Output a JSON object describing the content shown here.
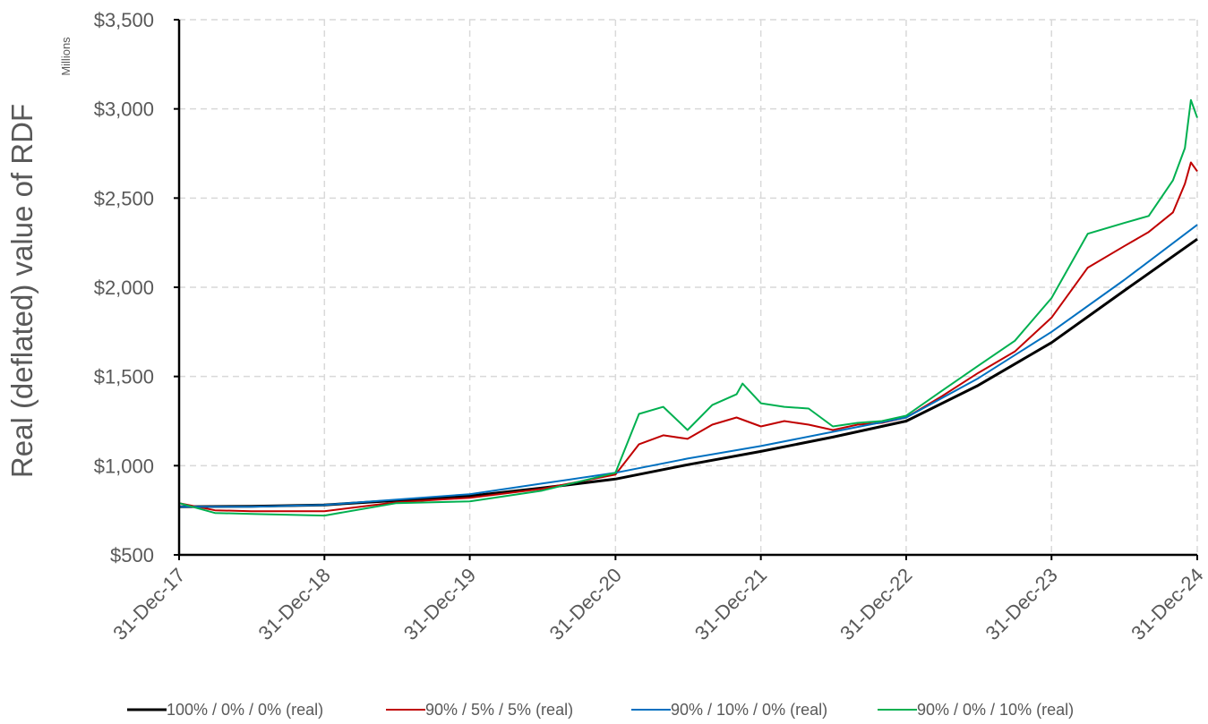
{
  "chart_data": {
    "type": "line",
    "title": "",
    "ylabel": "Real (deflated) value of RDF",
    "y_unit_label": "Millions",
    "ylim": [
      500,
      3500
    ],
    "y_ticks": [
      500,
      1000,
      1500,
      2000,
      2500,
      3000,
      3500
    ],
    "y_tick_labels": [
      "$500",
      "$1,000",
      "$1,500",
      "$2,000",
      "$2,500",
      "$3,000",
      "$3,500"
    ],
    "x_ticks": [
      0,
      1,
      2,
      3,
      4,
      5,
      6,
      7
    ],
    "x_tick_labels": [
      "31-Dec-17",
      "31-Dec-18",
      "31-Dec-19",
      "31-Dec-20",
      "31-Dec-21",
      "31-Dec-22",
      "31-Dec-23",
      "31-Dec-24"
    ],
    "x_range": [
      "31-Dec-17",
      "31-Dec-24"
    ],
    "grid": true,
    "legend_position": "bottom",
    "series": [
      {
        "name": "100% / 0% / 0% (real)",
        "color": "#000000",
        "x": [
          "31-Dec-17",
          "30-Jun-18",
          "31-Dec-18",
          "30-Jun-19",
          "31-Dec-19",
          "30-Jun-20",
          "31-Dec-20",
          "30-Jun-21",
          "31-Dec-21",
          "30-Jun-22",
          "31-Dec-22",
          "30-Jun-23",
          "31-Dec-23",
          "30-Jun-24",
          "31-Dec-24"
        ],
        "values": [
          770,
          772,
          780,
          805,
          830,
          875,
          925,
          1005,
          1080,
          1160,
          1250,
          1450,
          1690,
          1980,
          2270
        ]
      },
      {
        "name": "90% / 5% / 5% (real)",
        "color": "#C00000",
        "x": [
          "31-Dec-17",
          "31-Mar-18",
          "30-Jun-18",
          "31-Dec-18",
          "30-Jun-19",
          "31-Dec-19",
          "30-Jun-20",
          "31-Dec-20",
          "28-Feb-21",
          "30-Apr-21",
          "30-Jun-21",
          "31-Aug-21",
          "31-Oct-21",
          "31-Dec-21",
          "28-Feb-22",
          "30-Apr-22",
          "30-Jun-22",
          "31-Aug-22",
          "31-Oct-22",
          "31-Dec-22",
          "31-Mar-23",
          "30-Jun-23",
          "30-Sep-23",
          "31-Dec-23",
          "31-Mar-24",
          "30-Jun-24",
          "31-Aug-24",
          "31-Oct-24",
          "30-Nov-24",
          "15-Dec-24",
          "31-Dec-24"
        ],
        "values": [
          790,
          750,
          745,
          745,
          795,
          820,
          870,
          950,
          1120,
          1170,
          1150,
          1230,
          1270,
          1220,
          1250,
          1230,
          1200,
          1230,
          1240,
          1270,
          1390,
          1520,
          1640,
          1830,
          2110,
          2230,
          2310,
          2420,
          2580,
          2700,
          2650
        ]
      },
      {
        "name": "90% / 10% / 0% (real)",
        "color": "#0070C0",
        "x": [
          "31-Dec-17",
          "30-Jun-18",
          "31-Dec-18",
          "30-Jun-19",
          "31-Dec-19",
          "30-Jun-20",
          "31-Dec-20",
          "30-Jun-21",
          "31-Dec-21",
          "30-Jun-22",
          "31-Dec-22",
          "30-Jun-23",
          "31-Dec-23",
          "30-Jun-24",
          "31-Dec-24"
        ],
        "values": [
          770,
          770,
          780,
          810,
          840,
          900,
          960,
          1040,
          1110,
          1190,
          1270,
          1490,
          1750,
          2040,
          2350
        ]
      },
      {
        "name": "90% / 0% / 10% (real)",
        "color": "#00B050",
        "x": [
          "31-Dec-17",
          "31-Mar-18",
          "30-Jun-18",
          "31-Dec-18",
          "30-Jun-19",
          "31-Dec-19",
          "30-Jun-20",
          "31-Dec-20",
          "28-Feb-21",
          "30-Apr-21",
          "30-Jun-21",
          "31-Aug-21",
          "31-Oct-21",
          "15-Nov-21",
          "31-Dec-21",
          "28-Feb-22",
          "30-Apr-22",
          "30-Jun-22",
          "31-Aug-22",
          "31-Oct-22",
          "31-Dec-22",
          "31-Mar-23",
          "30-Jun-23",
          "30-Sep-23",
          "31-Dec-23",
          "31-Mar-24",
          "30-Jun-24",
          "31-Aug-24",
          "31-Oct-24",
          "30-Nov-24",
          "15-Dec-24",
          "31-Dec-24"
        ],
        "values": [
          790,
          735,
          730,
          720,
          790,
          800,
          860,
          960,
          1290,
          1330,
          1200,
          1340,
          1400,
          1460,
          1350,
          1330,
          1320,
          1220,
          1240,
          1250,
          1280,
          1420,
          1560,
          1700,
          1940,
          2300,
          2360,
          2400,
          2600,
          2780,
          3050,
          2950
        ]
      }
    ]
  }
}
